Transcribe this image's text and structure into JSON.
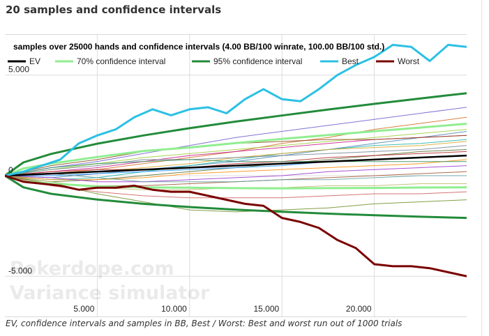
{
  "page": {
    "title": "20 samples and confidence intervals",
    "caption": "EV, confidence intervals and samples in BB, Best / Worst: Best and worst run out of 1000 trials",
    "watermark_line1": "Pokerdope.com",
    "watermark_line2": "Variance simulator"
  },
  "chart_data": {
    "type": "line",
    "title": "samples over 25000 hands and confidence intervals (4.00 BB/100 winrate, 100.00 BB/100 std.)",
    "xlabel": "",
    "ylabel": "",
    "xlim": [
      0,
      25000
    ],
    "ylim": [
      -7000,
      7000
    ],
    "x_ticks": [
      5000,
      10000,
      15000,
      20000
    ],
    "x_tick_labels": [
      "5.000",
      "10.000",
      "15.000",
      "20.000"
    ],
    "y_ticks": [
      -5000,
      0,
      5000
    ],
    "y_tick_labels": [
      "-5.000",
      "0",
      "5.000"
    ],
    "grid": true,
    "legend_position": "top",
    "legend": [
      {
        "label": "EV",
        "color": "#000000"
      },
      {
        "label": "70% confidence interval",
        "color": "#90ee90"
      },
      {
        "label": "95% confidence interval",
        "color": "#228b3a"
      },
      {
        "label": "Best",
        "color": "#2bc0e4"
      },
      {
        "label": "Worst",
        "color": "#7a0000"
      }
    ],
    "series": [
      {
        "name": "EV",
        "color": "#000000",
        "x": [
          0,
          5000,
          10000,
          15000,
          20000,
          25000
        ],
        "values": [
          0,
          200,
          400,
          600,
          800,
          1000
        ]
      },
      {
        "name": "70% confidence interval",
        "color": "#90ee90",
        "x": [
          0,
          1000,
          2500,
          5000,
          7500,
          10000,
          12500,
          15000,
          17500,
          20000,
          22500,
          25000
        ],
        "values": [
          0,
          356,
          600,
          930,
          1226,
          1400,
          1620,
          1830,
          2020,
          2210,
          2390,
          2580
        ]
      },
      {
        "name": "70% confidence interval",
        "color": "#90ee90",
        "x": [
          0,
          1000,
          2500,
          5000,
          7500,
          10000,
          12500,
          15000,
          17500,
          20000,
          22500,
          25000
        ],
        "values": [
          0,
          -276,
          -400,
          -530,
          -580,
          -600,
          -620,
          -630,
          -620,
          -610,
          -590,
          -580
        ]
      },
      {
        "name": "95% confidence interval",
        "color": "#228b3a",
        "x": [
          0,
          1000,
          2500,
          5000,
          7500,
          10000,
          12500,
          15000,
          17500,
          20000,
          22500,
          25000
        ],
        "values": [
          0,
          660,
          1080,
          1590,
          2000,
          2360,
          2690,
          2990,
          3290,
          3570,
          3840,
          4100
        ]
      },
      {
        "name": "95% confidence interval",
        "color": "#228b3a",
        "x": [
          0,
          1000,
          2500,
          5000,
          7500,
          10000,
          12500,
          15000,
          17500,
          20000,
          22500,
          25000
        ],
        "values": [
          0,
          -580,
          -900,
          -1190,
          -1400,
          -1560,
          -1690,
          -1790,
          -1890,
          -1970,
          -2040,
          -2100
        ]
      },
      {
        "name": "Best",
        "color": "#2bc0e4",
        "x": [
          0,
          1000,
          2000,
          3000,
          4000,
          5000,
          6000,
          7000,
          8000,
          9000,
          10000,
          11000,
          12000,
          13000,
          14000,
          15000,
          16000,
          17000,
          18000,
          19000,
          20000,
          21000,
          22000,
          23000,
          24000,
          25000
        ],
        "values": [
          0,
          200,
          500,
          800,
          1600,
          2000,
          2300,
          2900,
          3300,
          3000,
          3300,
          3400,
          3100,
          3800,
          4300,
          3800,
          3700,
          4300,
          5000,
          5500,
          5900,
          6500,
          6400,
          5700,
          6500,
          6400
        ]
      },
      {
        "name": "Worst",
        "color": "#7a0000",
        "x": [
          0,
          1000,
          2000,
          3000,
          4000,
          5000,
          6000,
          7000,
          8000,
          9000,
          10000,
          11000,
          12000,
          13000,
          14000,
          15000,
          16000,
          17000,
          18000,
          19000,
          20000,
          21000,
          22000,
          23000,
          24000,
          25000
        ],
        "values": [
          0,
          -300,
          -400,
          -500,
          -700,
          -600,
          -600,
          -500,
          -700,
          -800,
          -800,
          -1000,
          -1200,
          -1400,
          -1500,
          -2100,
          -2300,
          -2600,
          -3200,
          -3600,
          -4400,
          -4500,
          -4500,
          -4600,
          -4800,
          -5000
        ]
      }
    ],
    "samples": {
      "count": 20,
      "x": [
        0,
        2500,
        5000,
        7500,
        10000,
        12500,
        15000,
        17500,
        20000,
        22500,
        25000
      ],
      "colors": [
        "#6a5acd",
        "#d2691e",
        "#9acd32",
        "#4682b4",
        "#c71585",
        "#8b4513",
        "#20b2aa",
        "#daa520",
        "#708090",
        "#556b2f",
        "#b22222",
        "#1e90ff",
        "#ff8c00",
        "#2e8b57",
        "#9932cc",
        "#a0522d",
        "#5f9ea0",
        "#bdb76b",
        "#cd5c5c",
        "#6b8e23"
      ],
      "values": [
        [
          0,
          400,
          700,
          1100,
          1500,
          1900,
          2200,
          2500,
          2800,
          3100,
          3400
        ],
        [
          0,
          100,
          300,
          600,
          900,
          1200,
          1600,
          1900,
          2300,
          2600,
          2900
        ],
        [
          0,
          300,
          600,
          900,
          1100,
          1300,
          1500,
          1700,
          1900,
          2100,
          2300
        ],
        [
          0,
          -100,
          100,
          300,
          500,
          700,
          1000,
          1300,
          1600,
          1900,
          2200
        ],
        [
          0,
          200,
          400,
          700,
          1000,
          1200,
          1400,
          1600,
          1800,
          1900,
          2000
        ],
        [
          0,
          500,
          800,
          1200,
          1400,
          1600,
          1700,
          1800,
          1800,
          1900,
          2000
        ],
        [
          0,
          -200,
          -100,
          200,
          500,
          800,
          1100,
          1300,
          1500,
          1600,
          1800
        ],
        [
          0,
          100,
          200,
          400,
          600,
          900,
          1100,
          1300,
          1400,
          1500,
          1700
        ],
        [
          0,
          300,
          500,
          800,
          800,
          900,
          1000,
          1100,
          1200,
          1300,
          1500
        ],
        [
          0,
          -300,
          -200,
          0,
          200,
          400,
          600,
          800,
          1000,
          1200,
          1300
        ],
        [
          0,
          200,
          300,
          300,
          400,
          600,
          700,
          900,
          1000,
          1100,
          1200
        ],
        [
          0,
          0,
          100,
          200,
          300,
          400,
          500,
          700,
          800,
          900,
          1000
        ],
        [
          0,
          -200,
          -200,
          -100,
          100,
          200,
          300,
          400,
          500,
          600,
          800
        ],
        [
          0,
          400,
          600,
          700,
          800,
          700,
          700,
          700,
          700,
          700,
          700
        ],
        [
          0,
          -100,
          -300,
          -300,
          -200,
          -100,
          0,
          200,
          300,
          400,
          500
        ],
        [
          0,
          -400,
          -500,
          -500,
          -400,
          -300,
          -200,
          -100,
          0,
          100,
          200
        ],
        [
          0,
          100,
          -100,
          -300,
          -300,
          -300,
          -200,
          -200,
          -100,
          0,
          0
        ],
        [
          0,
          -300,
          -600,
          -700,
          -700,
          -600,
          -600,
          -500,
          -500,
          -400,
          -400
        ],
        [
          0,
          -500,
          -800,
          -1000,
          -1100,
          -1100,
          -1100,
          -1000,
          -900,
          -900,
          -800
        ],
        [
          0,
          -400,
          -900,
          -1300,
          -1700,
          -1800,
          -1700,
          -1600,
          -1400,
          -1300,
          -1200
        ]
      ]
    }
  }
}
